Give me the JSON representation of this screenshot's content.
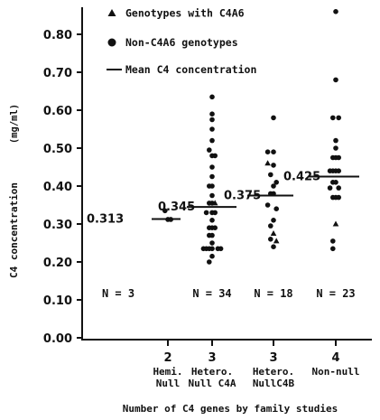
{
  "chart_data": {
    "type": "scatter",
    "title": "",
    "ylabel": "C4 concentration",
    "ylabel_unit": "(mg/ml)",
    "xlabel": "Number of C4 genes by family studies",
    "ylim": [
      0.0,
      0.85
    ],
    "yticks": [
      "0.00",
      "0.10",
      "0.20",
      "0.30",
      "0.40",
      "0.50",
      "0.60",
      "0.70",
      "0.80"
    ],
    "legend": {
      "placement": "top",
      "items": [
        {
          "marker": "triangle",
          "label": "Genotypes with C4A6"
        },
        {
          "marker": "circle",
          "label": "Non-C4A6 genotypes"
        },
        {
          "marker": "line",
          "label": "Mean C4 concentration"
        }
      ]
    },
    "categories": [
      {
        "number": "2",
        "line1": "Hemi.",
        "line2": "Null",
        "n_label": "N = 3",
        "mean": 0.313,
        "mean_label": "0.313"
      },
      {
        "number": "3",
        "line1": "Hetero.",
        "line2": "Null C4A",
        "n_label": "N = 34",
        "mean": 0.345,
        "mean_label": "0.345"
      },
      {
        "number": "3",
        "line1": "Hetero.",
        "line2": "NullC4B",
        "n_label": "N = 18",
        "mean": 0.375,
        "mean_label": "0.375"
      },
      {
        "number": "4",
        "line1": "Non-null",
        "line2": "",
        "n_label": "N = 23",
        "mean": 0.425,
        "mean_label": "0.425"
      }
    ],
    "points": [
      {
        "cat": 0,
        "off": -0.4,
        "y": 0.335,
        "m": "c"
      },
      {
        "cat": 0,
        "off": 0.0,
        "y": 0.312,
        "m": "c"
      },
      {
        "cat": 0,
        "off": 0.4,
        "y": 0.312,
        "m": "c"
      },
      {
        "cat": 1,
        "off": 0.0,
        "y": 0.635,
        "m": "c"
      },
      {
        "cat": 1,
        "off": 0.0,
        "y": 0.59,
        "m": "c"
      },
      {
        "cat": 1,
        "off": 0.0,
        "y": 0.575,
        "m": "c"
      },
      {
        "cat": 1,
        "off": 0.0,
        "y": 0.55,
        "m": "c"
      },
      {
        "cat": 1,
        "off": 0.0,
        "y": 0.52,
        "m": "c"
      },
      {
        "cat": 1,
        "off": -0.4,
        "y": 0.495,
        "m": "c"
      },
      {
        "cat": 1,
        "off": 0.0,
        "y": 0.48,
        "m": "c"
      },
      {
        "cat": 1,
        "off": 0.4,
        "y": 0.48,
        "m": "c"
      },
      {
        "cat": 1,
        "off": 0.0,
        "y": 0.45,
        "m": "c"
      },
      {
        "cat": 1,
        "off": 0.0,
        "y": 0.425,
        "m": "c"
      },
      {
        "cat": 1,
        "off": -0.4,
        "y": 0.4,
        "m": "c"
      },
      {
        "cat": 1,
        "off": 0.0,
        "y": 0.4,
        "m": "c"
      },
      {
        "cat": 1,
        "off": 0.0,
        "y": 0.375,
        "m": "c"
      },
      {
        "cat": 1,
        "off": -0.4,
        "y": 0.355,
        "m": "c"
      },
      {
        "cat": 1,
        "off": 0.0,
        "y": 0.355,
        "m": "c"
      },
      {
        "cat": 1,
        "off": 0.4,
        "y": 0.355,
        "m": "t"
      },
      {
        "cat": 1,
        "off": -0.8,
        "y": 0.33,
        "m": "c"
      },
      {
        "cat": 1,
        "off": 0.0,
        "y": 0.33,
        "m": "c"
      },
      {
        "cat": 1,
        "off": 0.4,
        "y": 0.33,
        "m": "c"
      },
      {
        "cat": 1,
        "off": 0.0,
        "y": 0.31,
        "m": "c"
      },
      {
        "cat": 1,
        "off": -0.4,
        "y": 0.29,
        "m": "c"
      },
      {
        "cat": 1,
        "off": 0.0,
        "y": 0.29,
        "m": "c"
      },
      {
        "cat": 1,
        "off": 0.4,
        "y": 0.29,
        "m": "c"
      },
      {
        "cat": 1,
        "off": -0.4,
        "y": 0.27,
        "m": "c"
      },
      {
        "cat": 1,
        "off": 0.0,
        "y": 0.27,
        "m": "c"
      },
      {
        "cat": 1,
        "off": 0.0,
        "y": 0.25,
        "m": "c"
      },
      {
        "cat": 1,
        "off": -1.2,
        "y": 0.235,
        "m": "c"
      },
      {
        "cat": 1,
        "off": -0.8,
        "y": 0.235,
        "m": "c"
      },
      {
        "cat": 1,
        "off": -0.4,
        "y": 0.235,
        "m": "c"
      },
      {
        "cat": 1,
        "off": 0.0,
        "y": 0.235,
        "m": "c"
      },
      {
        "cat": 1,
        "off": 0.8,
        "y": 0.235,
        "m": "c"
      },
      {
        "cat": 1,
        "off": 1.2,
        "y": 0.235,
        "m": "c"
      },
      {
        "cat": 1,
        "off": 0.0,
        "y": 0.215,
        "m": "c"
      },
      {
        "cat": 1,
        "off": -0.4,
        "y": 0.2,
        "m": "c"
      },
      {
        "cat": 2,
        "off": 0.0,
        "y": 0.58,
        "m": "c"
      },
      {
        "cat": 2,
        "off": -0.8,
        "y": 0.49,
        "m": "c"
      },
      {
        "cat": 2,
        "off": 0.0,
        "y": 0.49,
        "m": "c"
      },
      {
        "cat": 2,
        "off": -0.8,
        "y": 0.46,
        "m": "t"
      },
      {
        "cat": 2,
        "off": 0.0,
        "y": 0.455,
        "m": "c"
      },
      {
        "cat": 2,
        "off": -0.4,
        "y": 0.43,
        "m": "c"
      },
      {
        "cat": 2,
        "off": 0.4,
        "y": 0.41,
        "m": "c"
      },
      {
        "cat": 2,
        "off": 0.0,
        "y": 0.4,
        "m": "c"
      },
      {
        "cat": 2,
        "off": -0.4,
        "y": 0.38,
        "m": "c"
      },
      {
        "cat": 2,
        "off": 0.0,
        "y": 0.38,
        "m": "c"
      },
      {
        "cat": 2,
        "off": -0.8,
        "y": 0.35,
        "m": "c"
      },
      {
        "cat": 2,
        "off": 0.4,
        "y": 0.34,
        "m": "c"
      },
      {
        "cat": 2,
        "off": 0.0,
        "y": 0.31,
        "m": "c"
      },
      {
        "cat": 2,
        "off": -0.4,
        "y": 0.295,
        "m": "c"
      },
      {
        "cat": 2,
        "off": 0.0,
        "y": 0.275,
        "m": "t"
      },
      {
        "cat": 2,
        "off": -0.4,
        "y": 0.26,
        "m": "c"
      },
      {
        "cat": 2,
        "off": 0.4,
        "y": 0.255,
        "m": "t"
      },
      {
        "cat": 2,
        "off": 0.0,
        "y": 0.24,
        "m": "c"
      },
      {
        "cat": 3,
        "off": 0.0,
        "y": 0.86,
        "m": "c"
      },
      {
        "cat": 3,
        "off": 0.0,
        "y": 0.68,
        "m": "c"
      },
      {
        "cat": 3,
        "off": -0.4,
        "y": 0.58,
        "m": "c"
      },
      {
        "cat": 3,
        "off": 0.4,
        "y": 0.58,
        "m": "c"
      },
      {
        "cat": 3,
        "off": 0.0,
        "y": 0.52,
        "m": "c"
      },
      {
        "cat": 3,
        "off": 0.0,
        "y": 0.5,
        "m": "c"
      },
      {
        "cat": 3,
        "off": -0.4,
        "y": 0.475,
        "m": "c"
      },
      {
        "cat": 3,
        "off": 0.0,
        "y": 0.475,
        "m": "c"
      },
      {
        "cat": 3,
        "off": 0.4,
        "y": 0.475,
        "m": "c"
      },
      {
        "cat": 3,
        "off": -0.8,
        "y": 0.44,
        "m": "c"
      },
      {
        "cat": 3,
        "off": -0.4,
        "y": 0.44,
        "m": "c"
      },
      {
        "cat": 3,
        "off": 0.0,
        "y": 0.44,
        "m": "c"
      },
      {
        "cat": 3,
        "off": 0.4,
        "y": 0.44,
        "m": "c"
      },
      {
        "cat": 3,
        "off": -0.4,
        "y": 0.41,
        "m": "c"
      },
      {
        "cat": 3,
        "off": 0.0,
        "y": 0.41,
        "m": "c"
      },
      {
        "cat": 3,
        "off": -0.8,
        "y": 0.395,
        "m": "c"
      },
      {
        "cat": 3,
        "off": 0.4,
        "y": 0.395,
        "m": "c"
      },
      {
        "cat": 3,
        "off": -0.4,
        "y": 0.37,
        "m": "c"
      },
      {
        "cat": 3,
        "off": 0.0,
        "y": 0.37,
        "m": "c"
      },
      {
        "cat": 3,
        "off": 0.4,
        "y": 0.37,
        "m": "c"
      },
      {
        "cat": 3,
        "off": 0.0,
        "y": 0.3,
        "m": "t"
      },
      {
        "cat": 3,
        "off": -0.4,
        "y": 0.255,
        "m": "c"
      },
      {
        "cat": 3,
        "off": -0.4,
        "y": 0.235,
        "m": "c"
      }
    ]
  }
}
